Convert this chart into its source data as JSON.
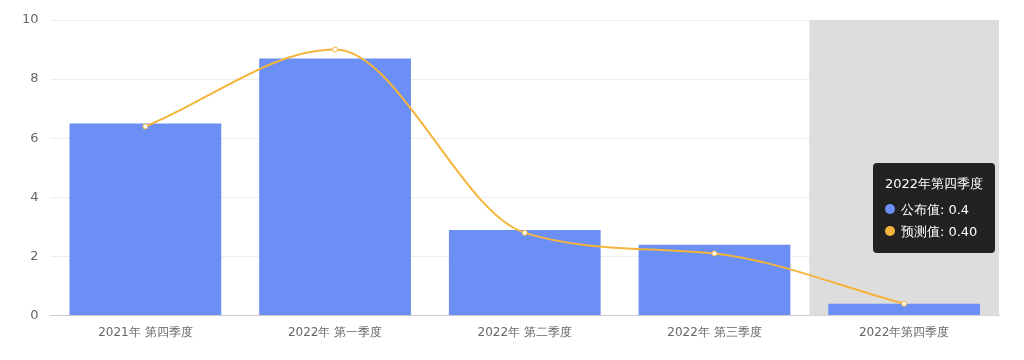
{
  "chart_data": {
    "type": "bar",
    "categories": [
      "2021年 第四季度",
      "2022年 第一季度",
      "2022年 第二季度",
      "2022年 第三季度",
      "2022年第四季度"
    ],
    "series": [
      {
        "color": "#6b8ff5",
        "values": [
          6.5,
          8.7,
          2.9,
          2.4,
          0.4
        ]
      },
      {
        "type": "line",
        "color": "#f5b43c",
        "values": [
          6.4,
          9.0,
          2.8,
          2.1,
          0.4
        ]
      }
    ],
    "annotations": [
      "2022年第四季度",
      "公布值: 0.4",
      "预测值: 0.40"
    ],
    "ylim": [
      0,
      10
    ],
    "yticks": [
      0,
      2,
      4,
      6,
      8,
      10
    ],
    "grid": "y",
    "marker": "circle",
    "line_style": "solid",
    "bands": [
      {
        "axis": "x",
        "from": "2022年第四季度",
        "to": "2022年第四季度",
        "color": "#dddddd"
      }
    ]
  }
}
